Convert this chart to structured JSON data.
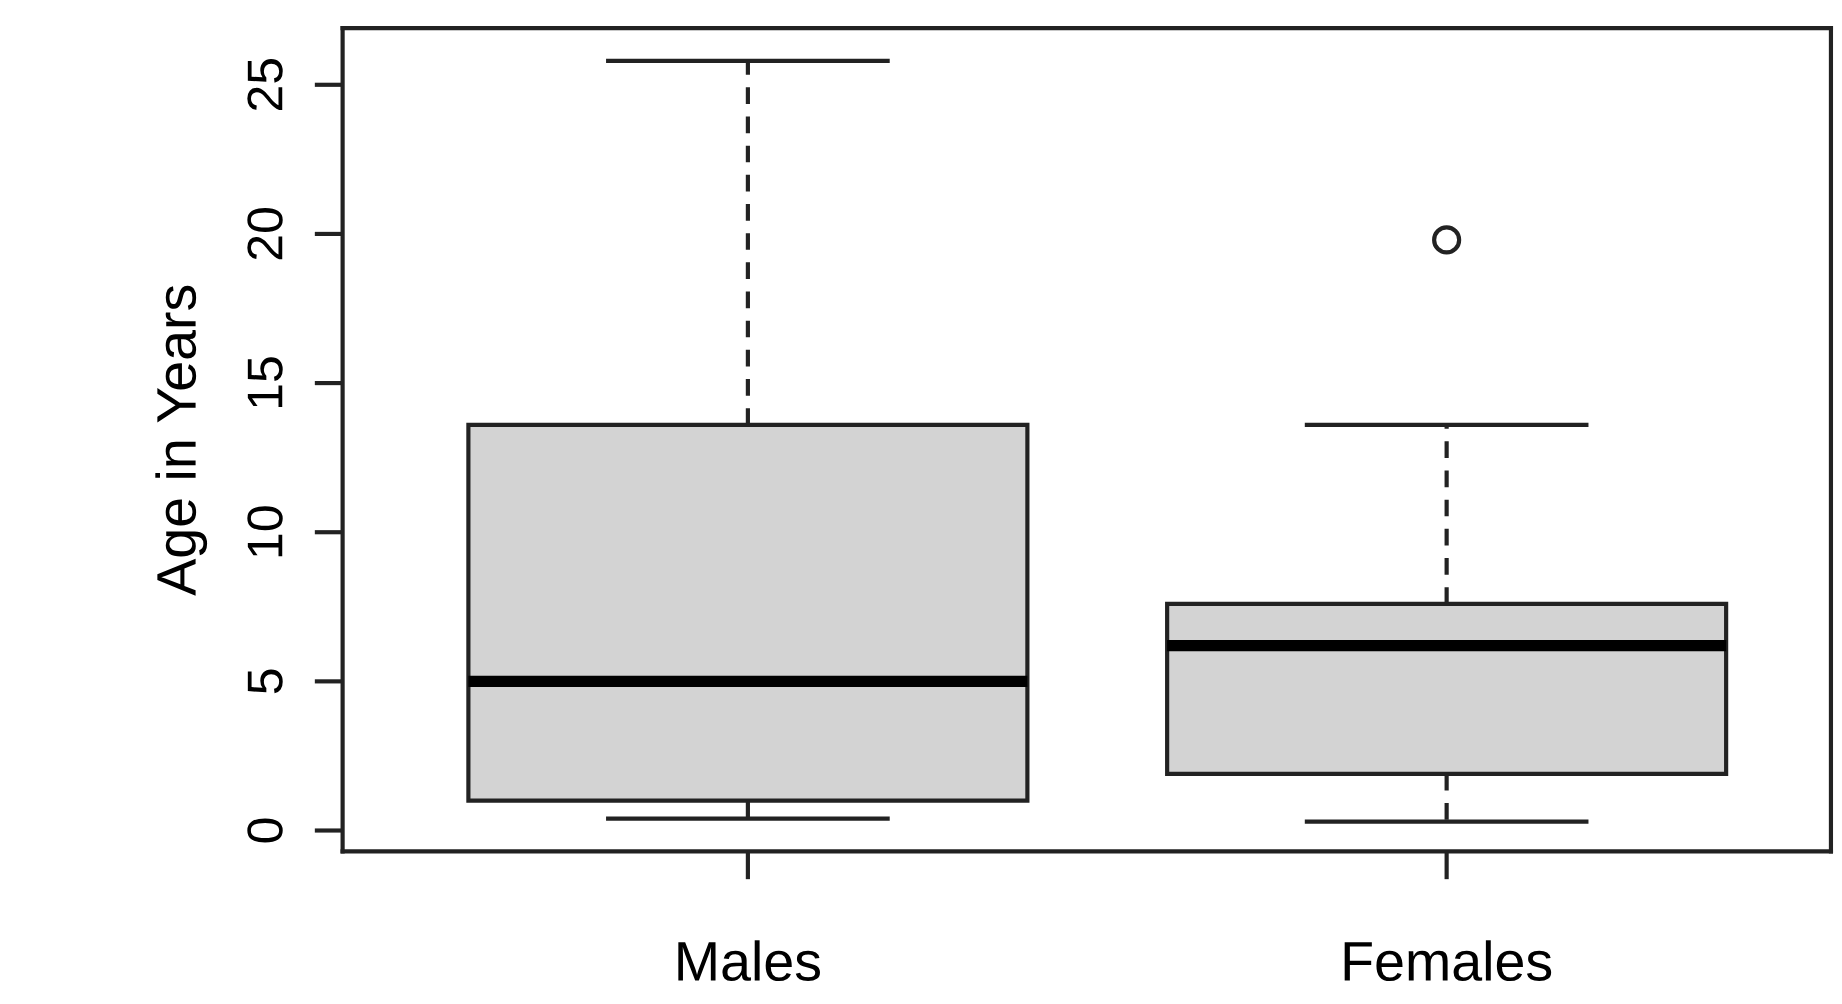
{
  "chart_data": {
    "type": "box",
    "ylabel": "Age in Years",
    "categories": [
      "Males",
      "Females"
    ],
    "color": "#d3d3d3",
    "boxes": [
      {
        "low": 0.4,
        "q1": 1.0,
        "median": 5.0,
        "q3": 13.6,
        "high": 25.8
      },
      {
        "low": 0.3,
        "q1": 1.9,
        "median": 6.2,
        "q3": 7.6,
        "high": 13.6,
        "outliers": [
          19.8
        ]
      }
    ],
    "ylim": [
      -0.7,
      26.9
    ],
    "yticks": [
      0,
      5,
      10,
      15,
      20,
      25
    ],
    "grid": false,
    "legend": false
  }
}
